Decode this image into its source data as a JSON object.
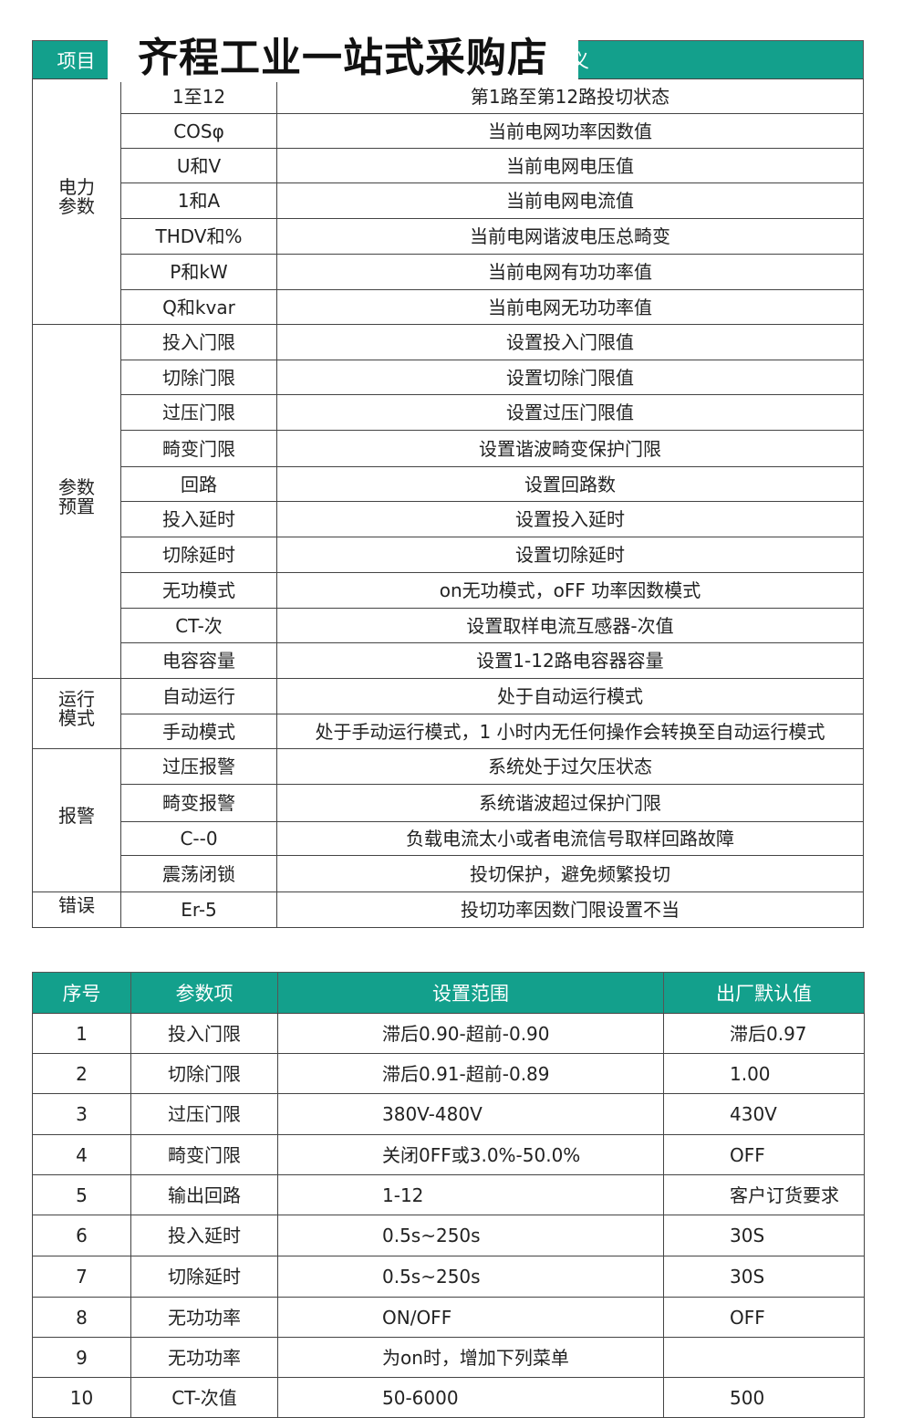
{
  "store_title": "齐程工业一站式采购店",
  "table1": {
    "headers": [
      "项目",
      "意义"
    ],
    "groups": [
      {
        "label": "电力\n参数",
        "rows": [
          [
            "1至12",
            "第1路至第12路投切状态"
          ],
          [
            "COSφ",
            "当前电网功率因数值"
          ],
          [
            "U和V",
            "当前电网电压值"
          ],
          [
            "1和A",
            "当前电网电流值"
          ],
          [
            "THDV和%",
            "当前电网谐波电压总畸变"
          ],
          [
            "P和kW",
            "当前电网有功功率值"
          ],
          [
            "Q和kvar",
            "当前电网无功功率值"
          ]
        ]
      },
      {
        "label": "参数\n预置",
        "rows": [
          [
            "投入门限",
            "设置投入门限值"
          ],
          [
            "切除门限",
            "设置切除门限值"
          ],
          [
            "过压门限",
            "设置过压门限值"
          ],
          [
            "畸变门限",
            "设置谐波畸变保护门限"
          ],
          [
            "回路",
            "设置回路数"
          ],
          [
            "投入延时",
            "设置投入延时"
          ],
          [
            "切除延时",
            "设置切除延时"
          ],
          [
            "无功模式",
            "on无功模式，oFF 功率因数模式"
          ],
          [
            "CT-次",
            "设置取样电流互感器-次值"
          ],
          [
            "电容容量",
            "设置1-12路电容器容量"
          ]
        ]
      },
      {
        "label": "运行\n模式",
        "rows": [
          [
            "自动运行",
            "处于自动运行模式"
          ],
          [
            "手动模式",
            "处于手动运行模式，1 小时内无任何操作会转换至自动运行模式"
          ]
        ]
      },
      {
        "label": "报警",
        "rows": [
          [
            "过压报警",
            "系统处于过欠压状态"
          ],
          [
            "畸变报警",
            "系统谐波超过保护门限"
          ],
          [
            "C--0",
            "负载电流太小或者电流信号取样回路故障"
          ],
          [
            "震荡闭锁",
            "投切保护，避免频繁投切"
          ]
        ]
      },
      {
        "label": "错误",
        "rows": [
          [
            "Er-5",
            "投切功率因数门限设置不当"
          ]
        ]
      }
    ]
  },
  "table2": {
    "headers": [
      "序号",
      "参数项",
      "设置范围",
      "出厂默认值"
    ],
    "rows": [
      [
        "1",
        "投入门限",
        "滞后0.90-超前-0.90",
        "滞后0.97"
      ],
      [
        "2",
        "切除门限",
        "滞后0.91-超前-0.89",
        "1.00"
      ],
      [
        "3",
        "过压门限",
        "380V-480V",
        "430V"
      ],
      [
        "4",
        "畸变门限",
        "关闭0FF或3.0%-50.0%",
        "OFF"
      ],
      [
        "5",
        "输出回路",
        "1-12",
        "客户订货要求"
      ],
      [
        "6",
        "投入延时",
        "0.5s~250s",
        "30S"
      ],
      [
        "7",
        "切除延时",
        "0.5s~250s",
        "30S"
      ],
      [
        "8",
        "无功功率",
        "ON/OFF",
        "OFF"
      ],
      [
        "9",
        "无功功率",
        "为on时，增加下列菜单",
        ""
      ],
      [
        "10",
        "CT-次值",
        "50-6000",
        "500"
      ]
    ]
  },
  "colors": {
    "header_bg": "#13a08c",
    "header_text": "#ffffff"
  }
}
